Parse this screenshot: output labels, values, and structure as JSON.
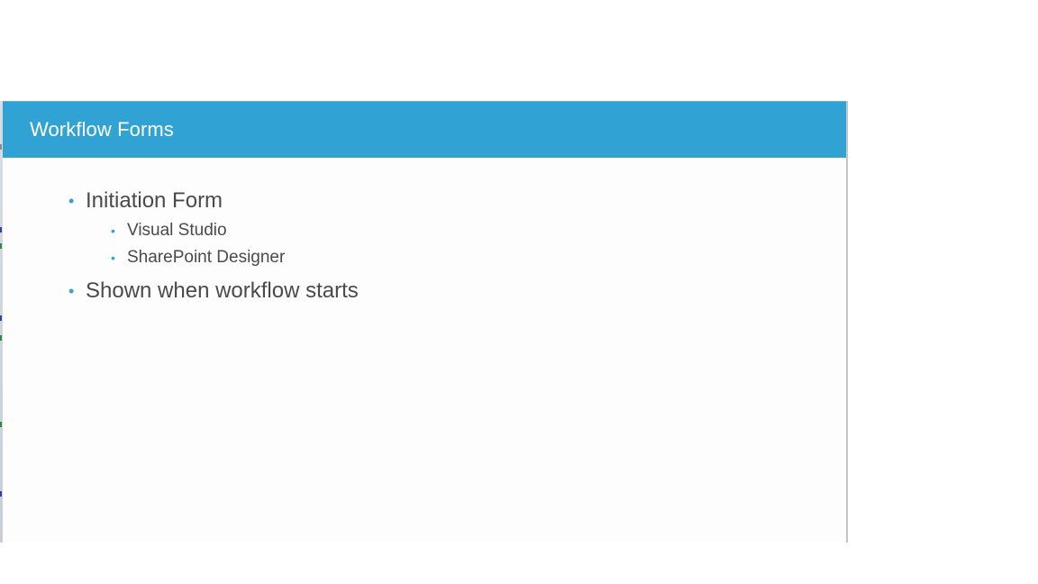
{
  "slide": {
    "title": "Workflow Forms",
    "accent_color": "#31a2d4",
    "bullets": [
      {
        "text": "Initiation Form",
        "sub": [
          "Visual Studio",
          "SharePoint Designer"
        ]
      },
      {
        "text": "Shown when workflow starts",
        "sub": []
      }
    ]
  },
  "icons": {
    "bullet": "•"
  }
}
